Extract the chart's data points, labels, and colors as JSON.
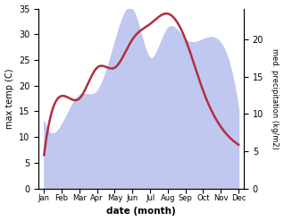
{
  "months": [
    "Jan",
    "Feb",
    "Mar",
    "Apr",
    "May",
    "Jun",
    "Jul",
    "Aug",
    "Sep",
    "Oct",
    "Nov",
    "Dec"
  ],
  "max_temp": [
    6.5,
    18.0,
    17.5,
    23.5,
    23.5,
    29.0,
    32.0,
    34.0,
    29.0,
    19.0,
    12.0,
    8.5
  ],
  "precipitation": [
    9.0,
    8.5,
    12.5,
    13.0,
    19.5,
    24.0,
    17.5,
    21.5,
    20.0,
    20.0,
    19.5,
    10.5
  ],
  "temp_color": "#b03040",
  "precip_fill_color": "#c0c8f0",
  "temp_ylim": [
    0,
    35
  ],
  "precip_ylim": [
    0,
    24.17
  ],
  "ylabel_left": "max temp (C)",
  "ylabel_right": "med. precipitation (kg/m2)",
  "xlabel": "date (month)",
  "right_ticks": [
    0,
    5,
    10,
    15,
    20
  ],
  "left_ticks": [
    0,
    5,
    10,
    15,
    20,
    25,
    30,
    35
  ]
}
